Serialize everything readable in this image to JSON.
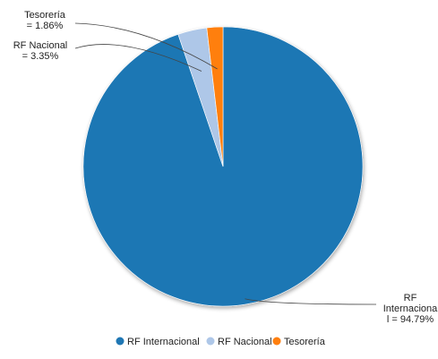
{
  "chart_data": {
    "type": "pie",
    "title": "",
    "slices": [
      {
        "name": "RF Internacional",
        "value": 94.79,
        "color": "#1f77b4",
        "label_lines": [
          "RF",
          "Internaciona",
          "l = 94.79%"
        ]
      },
      {
        "name": "RF Nacional",
        "value": 3.35,
        "color": "#aec7e8",
        "label_lines": [
          "RF Nacional",
          "= 3.35%"
        ]
      },
      {
        "name": "Tesorería",
        "value": 1.86,
        "color": "#ff7f0e",
        "label_lines": [
          "Tesorería",
          "= 1.86%"
        ]
      }
    ],
    "legend": {
      "position": "bottom",
      "items": [
        "RF Internacional",
        "RF Nacional",
        "Tesorería"
      ]
    }
  }
}
